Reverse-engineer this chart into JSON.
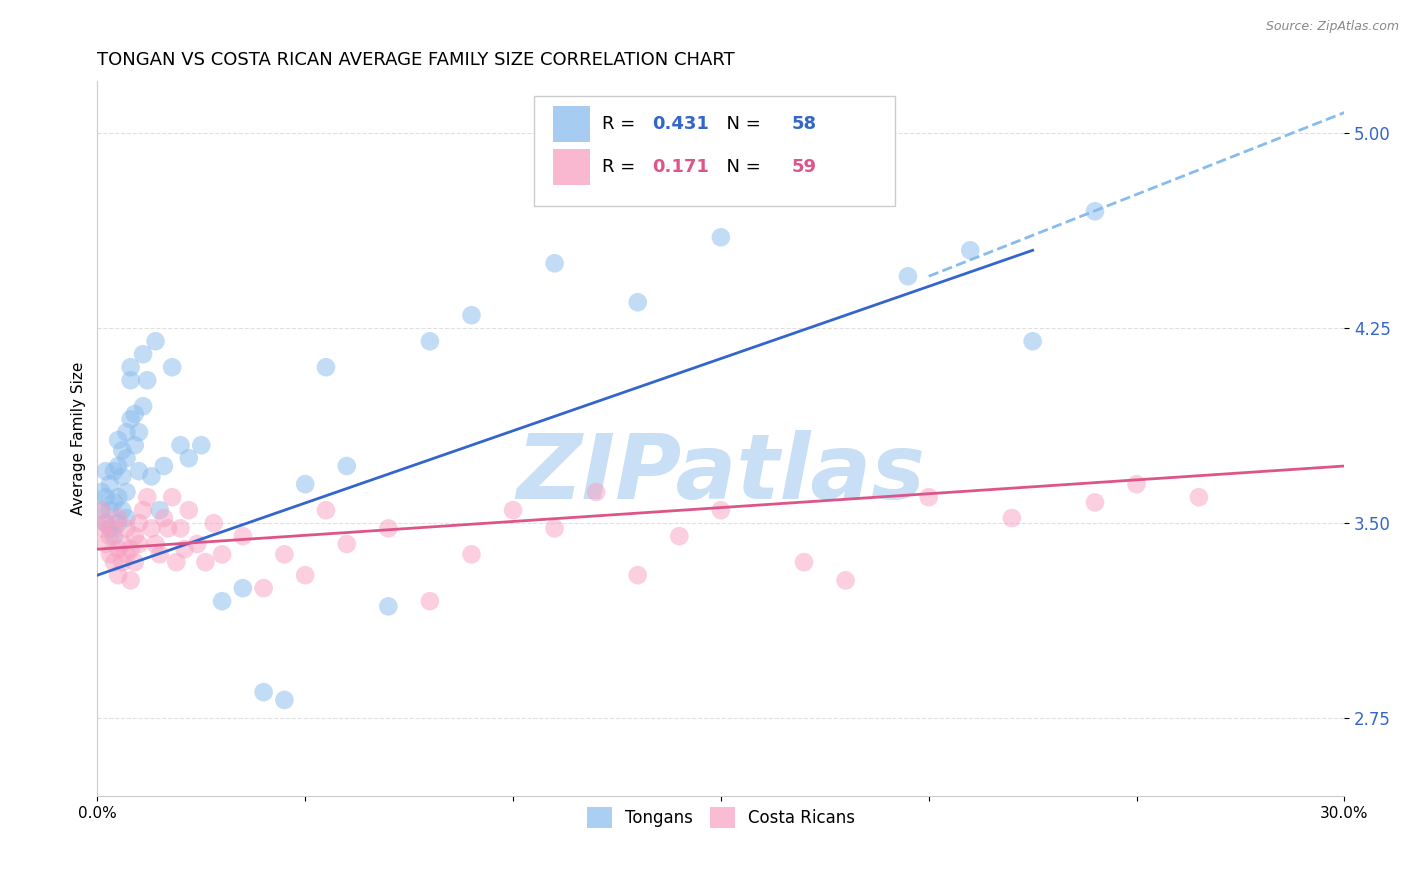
{
  "title": "TONGAN VS COSTA RICAN AVERAGE FAMILY SIZE CORRELATION CHART",
  "source": "Source: ZipAtlas.com",
  "ylabel": "Average Family Size",
  "xlim": [
    0.0,
    0.3
  ],
  "ylim": [
    2.45,
    5.2
  ],
  "xticks": [
    0.0,
    0.05,
    0.1,
    0.15,
    0.2,
    0.25,
    0.3
  ],
  "xticklabels": [
    "0.0%",
    "",
    "",
    "",
    "",
    "",
    "30.0%"
  ],
  "ytick_positions": [
    2.75,
    3.5,
    4.25,
    5.0
  ],
  "ytick_labels": [
    "2.75",
    "3.50",
    "4.25",
    "5.00"
  ],
  "grid_color": "#e0e0e0",
  "background_color": "#ffffff",
  "tongan_color": "#88bbee",
  "costa_rican_color": "#f8a0c0",
  "tongan_line_color": "#3366cc",
  "costa_rican_line_color": "#dd5588",
  "dashed_line_color": "#88bbee",
  "R_tongan": 0.431,
  "N_tongan": 58,
  "R_costa_rican": 0.171,
  "N_costa_rican": 59,
  "tongan_scatter_x": [
    0.001,
    0.001,
    0.002,
    0.002,
    0.002,
    0.003,
    0.003,
    0.003,
    0.004,
    0.004,
    0.004,
    0.005,
    0.005,
    0.005,
    0.005,
    0.006,
    0.006,
    0.006,
    0.007,
    0.007,
    0.007,
    0.007,
    0.008,
    0.008,
    0.008,
    0.009,
    0.009,
    0.01,
    0.01,
    0.011,
    0.011,
    0.012,
    0.013,
    0.014,
    0.015,
    0.016,
    0.018,
    0.02,
    0.022,
    0.025,
    0.03,
    0.035,
    0.04,
    0.045,
    0.05,
    0.055,
    0.06,
    0.07,
    0.08,
    0.09,
    0.11,
    0.13,
    0.15,
    0.17,
    0.195,
    0.21,
    0.225,
    0.24
  ],
  "tongan_scatter_y": [
    3.55,
    3.62,
    3.5,
    3.6,
    3.7,
    3.48,
    3.55,
    3.65,
    3.45,
    3.58,
    3.7,
    3.5,
    3.6,
    3.72,
    3.82,
    3.55,
    3.68,
    3.78,
    3.52,
    3.62,
    3.75,
    3.85,
    3.9,
    4.05,
    4.1,
    3.8,
    3.92,
    3.7,
    3.85,
    3.95,
    4.15,
    4.05,
    3.68,
    4.2,
    3.55,
    3.72,
    4.1,
    3.8,
    3.75,
    3.8,
    3.2,
    3.25,
    2.85,
    2.82,
    3.65,
    4.1,
    3.72,
    3.18,
    4.2,
    4.3,
    4.5,
    4.35,
    4.6,
    4.9,
    4.45,
    4.55,
    4.2,
    4.7
  ],
  "costa_rican_scatter_x": [
    0.001,
    0.001,
    0.002,
    0.002,
    0.003,
    0.003,
    0.004,
    0.004,
    0.005,
    0.005,
    0.005,
    0.006,
    0.006,
    0.007,
    0.007,
    0.008,
    0.008,
    0.009,
    0.009,
    0.01,
    0.01,
    0.011,
    0.012,
    0.013,
    0.014,
    0.015,
    0.016,
    0.017,
    0.018,
    0.019,
    0.02,
    0.021,
    0.022,
    0.024,
    0.026,
    0.028,
    0.03,
    0.035,
    0.04,
    0.045,
    0.05,
    0.055,
    0.06,
    0.07,
    0.08,
    0.09,
    0.1,
    0.11,
    0.12,
    0.13,
    0.14,
    0.15,
    0.17,
    0.18,
    0.2,
    0.22,
    0.24,
    0.25,
    0.265
  ],
  "costa_rican_scatter_y": [
    3.48,
    3.55,
    3.42,
    3.5,
    3.38,
    3.45,
    3.35,
    3.48,
    3.4,
    3.52,
    3.3,
    3.42,
    3.35,
    3.38,
    3.48,
    3.4,
    3.28,
    3.35,
    3.45,
    3.42,
    3.5,
    3.55,
    3.6,
    3.48,
    3.42,
    3.38,
    3.52,
    3.48,
    3.6,
    3.35,
    3.48,
    3.4,
    3.55,
    3.42,
    3.35,
    3.5,
    3.38,
    3.45,
    3.25,
    3.38,
    3.3,
    3.55,
    3.42,
    3.48,
    3.2,
    3.38,
    3.55,
    3.48,
    3.62,
    3.3,
    3.45,
    3.55,
    3.35,
    3.28,
    3.6,
    3.52,
    3.58,
    3.65,
    3.6
  ],
  "tongan_line_x": [
    0.0,
    0.225
  ],
  "tongan_line_y": [
    3.3,
    4.55
  ],
  "dashed_line_x": [
    0.2,
    0.3
  ],
  "dashed_line_y": [
    4.45,
    5.08
  ],
  "costa_rican_line_x": [
    0.0,
    0.3
  ],
  "costa_rican_line_y": [
    3.4,
    3.72
  ],
  "watermark": "ZIPatlas",
  "watermark_color": "#c8dff5",
  "title_fontsize": 13,
  "axis_label_fontsize": 11,
  "tick_fontsize": 11,
  "scatter_size": 180,
  "scatter_alpha": 0.5,
  "line_width": 2.0
}
